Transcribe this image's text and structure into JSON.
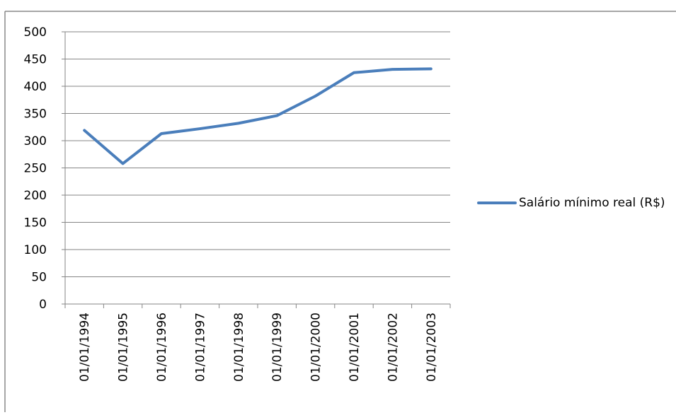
{
  "chart_data": {
    "type": "line",
    "categories": [
      "01/01/1994",
      "01/01/1995",
      "01/01/1996",
      "01/01/1997",
      "01/01/1998",
      "01/01/1999",
      "01/01/2000",
      "01/01/2001",
      "01/01/2002",
      "01/01/2003"
    ],
    "series": [
      {
        "name": "Salário mínimo real (R$)",
        "color": "#4a7ebb",
        "values": [
          319,
          258,
          313,
          322,
          332,
          346,
          382,
          425,
          431,
          432
        ]
      }
    ],
    "ylim": [
      0,
      500
    ],
    "yticks": [
      0,
      50,
      100,
      150,
      200,
      250,
      300,
      350,
      400,
      450,
      500
    ],
    "grid": true,
    "legend": "right"
  }
}
